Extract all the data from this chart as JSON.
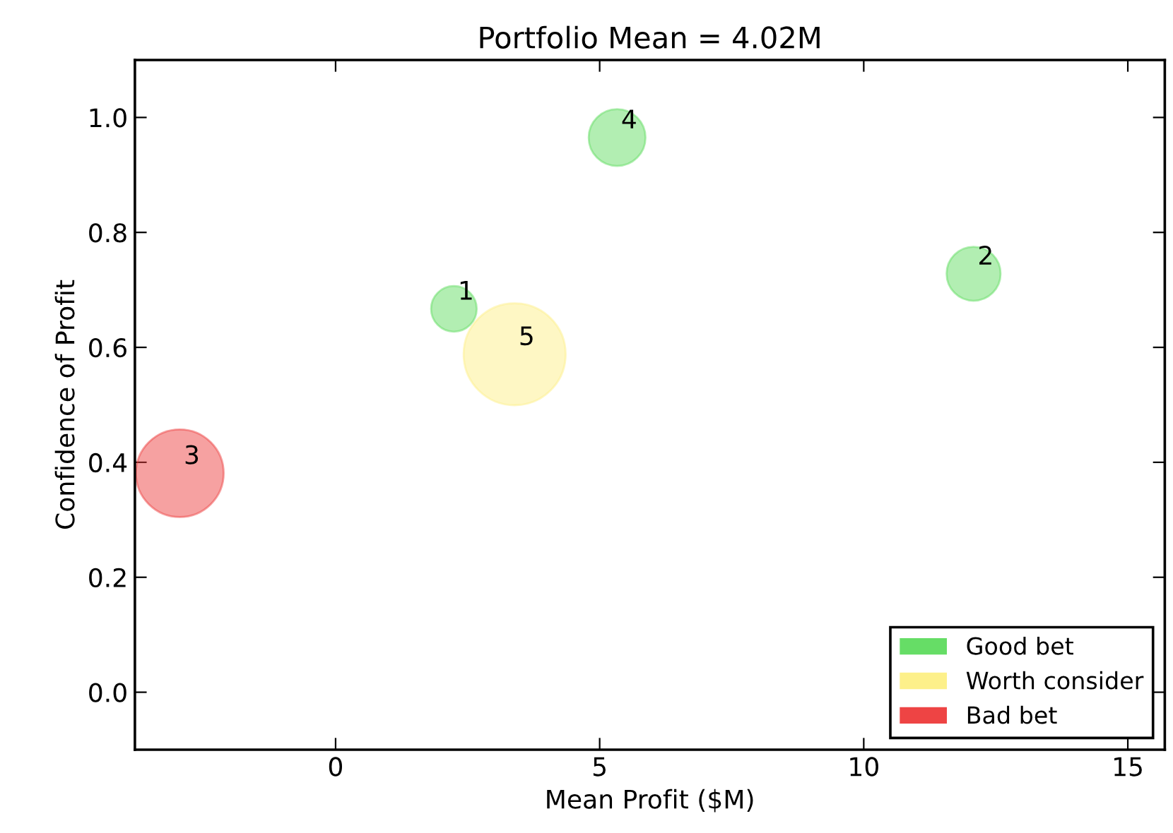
{
  "chart_data": {
    "type": "bubble",
    "title": "Portfolio Mean = 4.02M",
    "xlabel": "Mean Profit ($M)",
    "ylabel": "Confidence of Profit",
    "series": [
      {
        "name": "Good bet",
        "color": "#66dd66",
        "x": [
          2.24,
          12.08,
          5.33
        ],
        "values": [
          0.667,
          0.728,
          0.965
        ],
        "sizes": [
          0.2,
          0.28,
          0.31
        ]
      },
      {
        "name": "Worth consider",
        "color": "#fdf08a",
        "x": [
          3.39
        ],
        "values": [
          0.588
        ],
        "sizes": [
          1
        ]
      },
      {
        "name": "Bad bet",
        "color": "#ee4444",
        "x": [
          -2.95
        ],
        "values": [
          0.381
        ],
        "sizes": [
          0.74
        ]
      }
    ],
    "annotations": [
      {
        "text": "1",
        "x": 2.24,
        "y": 0.667
      },
      {
        "text": "2",
        "x": 12.08,
        "y": 0.728
      },
      {
        "text": "3",
        "x": -2.95,
        "y": 0.381
      },
      {
        "text": "4",
        "x": 5.33,
        "y": 0.965
      },
      {
        "text": "5",
        "x": 3.39,
        "y": 0.588
      }
    ],
    "xlim": [
      -3.8,
      15.7
    ],
    "ylim": [
      -0.1,
      1.1
    ],
    "xticks": [
      0,
      5,
      10,
      15
    ],
    "yticks": [
      {
        "value": 0,
        "label": "0.0"
      },
      {
        "value": 0.2,
        "label": "0.2"
      },
      {
        "value": 0.4,
        "label": "0.4"
      },
      {
        "value": 0.6,
        "label": "0.6"
      },
      {
        "value": 0.8,
        "label": "0.8"
      },
      {
        "value": 1.0,
        "label": "1.0"
      }
    ],
    "grid": false,
    "legend": "bottom right"
  }
}
